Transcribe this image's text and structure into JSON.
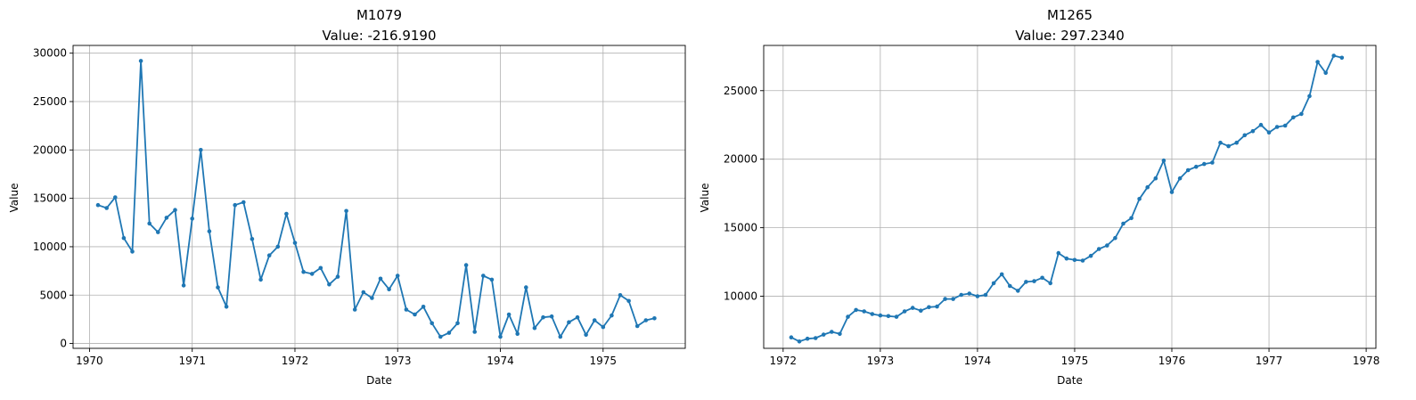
{
  "chart_data": [
    {
      "type": "line",
      "title": "M1079",
      "subtitle": "Value: -216.9190",
      "xlabel": "Date",
      "ylabel": "Value",
      "x_ticks": [
        "1970",
        "1971",
        "1972",
        "1973",
        "1974",
        "1975"
      ],
      "y_ticks": [
        "0",
        "5000",
        "10000",
        "15000",
        "20000",
        "25000",
        "30000"
      ],
      "xlim": [
        1969.84,
        1975.8
      ],
      "ylim": [
        -500,
        30800
      ],
      "grid": true,
      "start": 1970.0833,
      "step": 0.0833333,
      "values": [
        14300,
        14000,
        15100,
        10900,
        9500,
        29200,
        12400,
        11500,
        13000,
        13800,
        6000,
        12900,
        20000,
        11600,
        5800,
        3800,
        14300,
        14600,
        10800,
        6600,
        9100,
        10000,
        13400,
        10400,
        7400,
        7200,
        7800,
        6100,
        6900,
        13700,
        3500,
        5300,
        4700,
        6700,
        5600,
        7000,
        3500,
        3000,
        3800,
        2100,
        700,
        1100,
        2100,
        8100,
        1200,
        7000,
        6600,
        700,
        3000,
        1000,
        5800,
        1600,
        2700,
        2800,
        700,
        2200,
        2700,
        900,
        2400,
        1700,
        2900,
        5000,
        4400,
        1800,
        2400,
        2600
      ]
    },
    {
      "type": "line",
      "title": "M1265",
      "subtitle": "Value: 297.2340",
      "xlabel": "Date",
      "ylabel": "Value",
      "x_ticks": [
        "1972",
        "1973",
        "1974",
        "1975",
        "1976",
        "1977",
        "1978"
      ],
      "y_ticks": [
        "10000",
        "15000",
        "20000",
        "25000"
      ],
      "xlim": [
        1971.8,
        1978.1
      ],
      "ylim": [
        6200,
        28300
      ],
      "grid": true,
      "start": 1972.0833,
      "step": 0.0833333,
      "values": [
        7000,
        6700,
        6900,
        6950,
        7200,
        7400,
        7250,
        8500,
        9000,
        8900,
        8700,
        8600,
        8550,
        8500,
        8900,
        9150,
        8950,
        9200,
        9250,
        9800,
        9800,
        10100,
        10200,
        10000,
        10100,
        10950,
        11600,
        10750,
        10400,
        11050,
        11100,
        11350,
        10950,
        13150,
        12750,
        12650,
        12600,
        12950,
        13450,
        13700,
        14250,
        15300,
        15700,
        17100,
        17950,
        18600,
        19900,
        17600,
        18600,
        19200,
        19450,
        19650,
        19750,
        21200,
        20950,
        21200,
        21750,
        22050,
        22500,
        21950,
        22350,
        22450,
        23050,
        23300,
        24600,
        27100,
        26300,
        27550,
        27400
      ]
    }
  ]
}
